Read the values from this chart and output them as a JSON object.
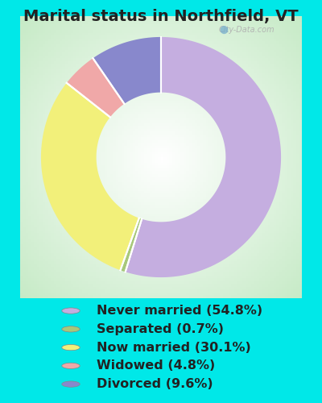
{
  "title": "Marital status in Northfield, VT",
  "slices": [
    54.8,
    0.7,
    30.1,
    4.8,
    9.6
  ],
  "labels": [
    "Never married (54.8%)",
    "Separated (0.7%)",
    "Now married (30.1%)",
    "Widowed (4.8%)",
    "Divorced (9.6%)"
  ],
  "colors": [
    "#c5aee0",
    "#a8c87a",
    "#f2f07a",
    "#f0a8a8",
    "#8888cc"
  ],
  "bg_color": "#00e8e8",
  "chart_bg_center": "#e8f5e8",
  "title_fontsize": 14,
  "legend_fontsize": 11.5,
  "watermark": "City-Data.com",
  "title_color": "#222222",
  "legend_text_color": "#222222"
}
